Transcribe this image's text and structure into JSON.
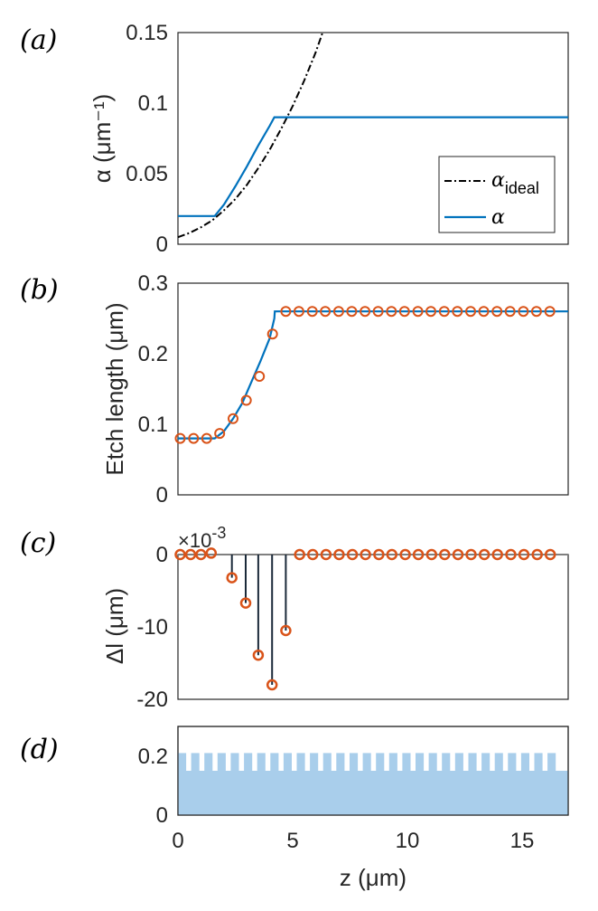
{
  "chart_data": [
    {
      "panel": "(a)",
      "type": "line",
      "ylabel": "α (μm⁻¹)",
      "ylim": [
        0,
        0.15
      ],
      "yticks": [
        "0",
        "0.05",
        "0.1",
        "0.15"
      ],
      "xlim": [
        0,
        17
      ],
      "series": [
        {
          "name": "α_ideal",
          "style": "dash-dot",
          "color": "#000000",
          "x": [
            0,
            0.5,
            1,
            1.5,
            2,
            2.5,
            3,
            3.5,
            4,
            4.5,
            5,
            5.5,
            6,
            6.3
          ],
          "y": [
            0.005,
            0.008,
            0.012,
            0.017,
            0.024,
            0.032,
            0.042,
            0.054,
            0.067,
            0.082,
            0.098,
            0.116,
            0.136,
            0.15
          ]
        },
        {
          "name": "α",
          "style": "solid",
          "color": "#0072BD",
          "x": [
            0,
            1.6,
            2,
            2.5,
            3,
            3.5,
            4,
            4.2,
            5,
            10,
            15,
            17
          ],
          "y": [
            0.02,
            0.02,
            0.028,
            0.041,
            0.055,
            0.07,
            0.084,
            0.09,
            0.09,
            0.09,
            0.09,
            0.09
          ]
        }
      ],
      "legend": {
        "ideal_main": "α",
        "ideal_sub": "ideal",
        "alpha": "α"
      }
    },
    {
      "panel": "(b)",
      "type": "line",
      "ylabel": "Etch length (μm)",
      "ylim": [
        0,
        0.3
      ],
      "yticks": [
        "0",
        "0.1",
        "0.2",
        "0.3"
      ],
      "xlim": [
        0,
        17
      ],
      "line": {
        "x": [
          0,
          1.6,
          2.0,
          2.4,
          2.8,
          3.2,
          3.6,
          4.0,
          4.2,
          4.22,
          17
        ],
        "y": [
          0.08,
          0.08,
          0.09,
          0.108,
          0.13,
          0.16,
          0.19,
          0.222,
          0.25,
          0.26,
          0.26
        ]
      },
      "markers": {
        "x": [
          0.1,
          0.68,
          1.25,
          1.82,
          2.4,
          2.98,
          3.55,
          4.12,
          4.7,
          5.27,
          5.85,
          6.42,
          7.0,
          7.57,
          8.15,
          8.72,
          9.3,
          9.87,
          10.45,
          11.02,
          11.6,
          12.17,
          12.75,
          13.32,
          13.9,
          14.47,
          15.05,
          15.62,
          16.2
        ],
        "y": [
          0.08,
          0.08,
          0.08,
          0.087,
          0.108,
          0.134,
          0.168,
          0.228,
          0.26,
          0.26,
          0.26,
          0.26,
          0.26,
          0.26,
          0.26,
          0.26,
          0.26,
          0.26,
          0.26,
          0.26,
          0.26,
          0.26,
          0.26,
          0.26,
          0.26,
          0.26,
          0.26,
          0.26,
          0.26
        ]
      }
    },
    {
      "panel": "(c)",
      "type": "stem",
      "ylabel": "Δl (μm)",
      "exponent_base": "×10",
      "exponent_power": "-3",
      "ylim": [
        -20,
        0
      ],
      "yticks": [
        "0",
        "-10",
        "-20"
      ],
      "xlim": [
        0,
        17
      ],
      "x": [
        0.1,
        0.55,
        1.0,
        1.45,
        2.35,
        2.95,
        3.5,
        4.1,
        4.7,
        5.3,
        5.87,
        6.45,
        7.02,
        7.6,
        8.17,
        8.75,
        9.32,
        9.9,
        10.47,
        11.05,
        11.62,
        12.2,
        12.77,
        13.35,
        13.92,
        14.5,
        15.07,
        15.65,
        16.22
      ],
      "y": [
        0,
        0,
        0,
        0.2,
        -3.2,
        -6.7,
        -13.9,
        -18.0,
        -10.5,
        0,
        0,
        0,
        0,
        0,
        0,
        0,
        0,
        0,
        0,
        0,
        0,
        0,
        0,
        0,
        0,
        0,
        0,
        0,
        0
      ]
    },
    {
      "panel": "(d)",
      "type": "area",
      "ylim": [
        0,
        0.3
      ],
      "yticks": [
        "0",
        "0.2"
      ],
      "xlim": [
        0,
        17
      ],
      "xticks": [
        "0",
        "5",
        "10",
        "15"
      ],
      "xlabel": "z (μm)",
      "base_height": 0.15,
      "tooth_height": 0.21,
      "period": 0.575,
      "tooth_count": 29,
      "color": "#A9CEEB"
    }
  ]
}
